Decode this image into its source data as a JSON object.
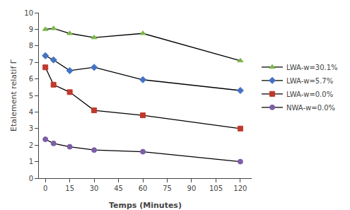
{
  "chart_data": {
    "type": "line",
    "x_label": "Temps (Minutes)",
    "y_label": "Etalement relatif Γ",
    "x": [
      0,
      5,
      15,
      30,
      60,
      120
    ],
    "color": "#000000",
    "series": [
      {
        "name": "LWA-w=30.1%",
        "color": "#7ab648",
        "marker": "triangle-up",
        "values": [
          9.0,
          9.05,
          8.75,
          8.5,
          8.75,
          7.1
        ]
      },
      {
        "name": "LWA-w=5.7%",
        "color": "#4472c4",
        "marker": "diamond",
        "values": [
          7.4,
          7.15,
          6.5,
          6.7,
          5.95,
          5.3
        ]
      },
      {
        "name": "LWA-w=0.0%",
        "color": "#c0392b",
        "marker": "square",
        "values": [
          6.7,
          5.65,
          5.2,
          4.1,
          3.8,
          3.0
        ]
      },
      {
        "name": "NWA-w=0.0%",
        "color": "#7b5ea7",
        "marker": "circle",
        "values": [
          2.35,
          2.1,
          1.9,
          1.7,
          1.6,
          1.0
        ]
      }
    ],
    "xlim": [
      -4,
      127
    ],
    "ylim": [
      0,
      10
    ],
    "xticks": [
      0,
      15,
      30,
      45,
      60,
      75,
      90,
      105,
      120
    ],
    "yticks": [
      0,
      1,
      2,
      3,
      4,
      5,
      6,
      7,
      8,
      9,
      10
    ],
    "grid": false,
    "legend": "right"
  }
}
